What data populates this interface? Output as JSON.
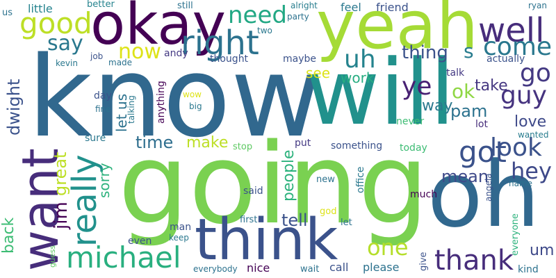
{
  "words": [
    {
      "text": "know",
      "color": "#31688e"
    },
    {
      "text": "going",
      "color": "#7ad151"
    },
    {
      "text": "will",
      "color": "#21918c"
    },
    {
      "text": "oh",
      "color": "#31688e"
    },
    {
      "text": "yeah",
      "color": "#a5db36"
    },
    {
      "text": "okay",
      "color": "#440154"
    },
    {
      "text": "think",
      "color": "#3b528b"
    },
    {
      "text": "want",
      "color": "#472d7b"
    },
    {
      "text": "right",
      "color": "#2c728e"
    },
    {
      "text": "well",
      "color": "#472d7b"
    },
    {
      "text": "good",
      "color": "#bddf26"
    },
    {
      "text": "really",
      "color": "#21918c"
    },
    {
      "text": "michael",
      "color": "#29af7f"
    },
    {
      "text": "got",
      "color": "#3b528b"
    },
    {
      "text": "look",
      "color": "#3b528b"
    },
    {
      "text": "guy",
      "color": "#46337f"
    },
    {
      "text": "thank",
      "color": "#472d7b"
    },
    {
      "text": "come",
      "color": "#2a788e"
    },
    {
      "text": "need",
      "color": "#22a884"
    },
    {
      "text": "uh",
      "color": "#25838e"
    },
    {
      "text": "go",
      "color": "#443983"
    },
    {
      "text": "ye",
      "color": "#482173"
    },
    {
      "text": "hey",
      "color": "#3e4989"
    },
    {
      "text": "one",
      "color": "#b5de2b"
    },
    {
      "text": "say",
      "color": "#2a788e"
    },
    {
      "text": "now",
      "color": "#dde318"
    },
    {
      "text": "thing",
      "color": "#3b528b"
    },
    {
      "text": "s",
      "color": "#287c8e"
    },
    {
      "text": "take",
      "color": "#453781"
    },
    {
      "text": "ok",
      "color": "#8fd744"
    },
    {
      "text": "pam",
      "color": "#2c728e"
    },
    {
      "text": "mean",
      "color": "#3e4989"
    },
    {
      "text": "love",
      "color": "#3e4989"
    },
    {
      "text": "way",
      "color": "#2a788e"
    },
    {
      "text": "time",
      "color": "#2e6e8e"
    },
    {
      "text": "make",
      "color": "#bddf26"
    },
    {
      "text": "work",
      "color": "#27ad81"
    },
    {
      "text": "see",
      "color": "#dde318"
    },
    {
      "text": "tell",
      "color": "#3b528b"
    },
    {
      "text": "people",
      "color": "#2db27d"
    },
    {
      "text": "dwight",
      "color": "#3b528b"
    },
    {
      "text": "great",
      "color": "#bddf26"
    },
    {
      "text": "jim",
      "color": "#440154"
    },
    {
      "text": "sorry",
      "color": "#2db27d"
    },
    {
      "text": "let us",
      "color": "#2c728e"
    },
    {
      "text": "um",
      "color": "#3e4989"
    },
    {
      "text": "back",
      "color": "#3dbc74"
    },
    {
      "text": "little",
      "color": "#25838e"
    },
    {
      "text": "better",
      "color": "#25838e"
    },
    {
      "text": "still",
      "color": "#2c728e"
    },
    {
      "text": "alright",
      "color": "#287d8e"
    },
    {
      "text": "party",
      "color": "#2c728e"
    },
    {
      "text": "feel",
      "color": "#2a788e"
    },
    {
      "text": "friend",
      "color": "#3b528b"
    },
    {
      "text": "ryan",
      "color": "#2c728e"
    },
    {
      "text": "us",
      "color": "#2c728e"
    },
    {
      "text": "two",
      "color": "#2a788e"
    },
    {
      "text": "job",
      "color": "#3b528b"
    },
    {
      "text": "andy",
      "color": "#443983"
    },
    {
      "text": "thought",
      "color": "#3b528b"
    },
    {
      "text": "maybe",
      "color": "#3b528b"
    },
    {
      "text": "kevin",
      "color": "#2a788e"
    },
    {
      "text": "made",
      "color": "#2c728e"
    },
    {
      "text": "actually",
      "color": "#3b528b"
    },
    {
      "text": "talk",
      "color": "#443983"
    },
    {
      "text": "day",
      "color": "#3b528b"
    },
    {
      "text": "wow",
      "color": "#dde318"
    },
    {
      "text": "anything",
      "color": "#440154"
    },
    {
      "text": "talking",
      "color": "#2a788e"
    },
    {
      "text": "big",
      "color": "#2a788e"
    },
    {
      "text": "fine",
      "color": "#2c728e"
    },
    {
      "text": "never",
      "color": "#3dbc74"
    },
    {
      "text": "lot",
      "color": "#472d7b"
    },
    {
      "text": "sure",
      "color": "#2a788e"
    },
    {
      "text": "stop",
      "color": "#5ec962"
    },
    {
      "text": "put",
      "color": "#443983"
    },
    {
      "text": "something",
      "color": "#3b528b"
    },
    {
      "text": "today",
      "color": "#3dbc74"
    },
    {
      "text": "wanted",
      "color": "#287c8e"
    },
    {
      "text": "said",
      "color": "#3b528b"
    },
    {
      "text": "new",
      "color": "#2c728e"
    },
    {
      "text": "office",
      "color": "#2a788e"
    },
    {
      "text": "angela",
      "color": "#3b528b"
    },
    {
      "text": "name",
      "color": "#2c728e"
    },
    {
      "text": "much",
      "color": "#440154"
    },
    {
      "text": "god",
      "color": "#dde318"
    },
    {
      "text": "first",
      "color": "#2c728e"
    },
    {
      "text": "let",
      "color": "#2c728e"
    },
    {
      "text": "man",
      "color": "#3b528b"
    },
    {
      "text": "keep",
      "color": "#2a788e"
    },
    {
      "text": "even",
      "color": "#3b528b"
    },
    {
      "text": "everyone",
      "color": "#2db27d"
    },
    {
      "text": "guess",
      "color": "#5ec962"
    },
    {
      "text": "everybody",
      "color": "#2c728e"
    },
    {
      "text": "nice",
      "color": "#440154"
    },
    {
      "text": "wait",
      "color": "#2c728e"
    },
    {
      "text": "call",
      "color": "#3b528b"
    },
    {
      "text": "please",
      "color": "#2c728e"
    },
    {
      "text": "give",
      "color": "#3b528b"
    },
    {
      "text": "kind",
      "color": "#2c728e"
    }
  ]
}
